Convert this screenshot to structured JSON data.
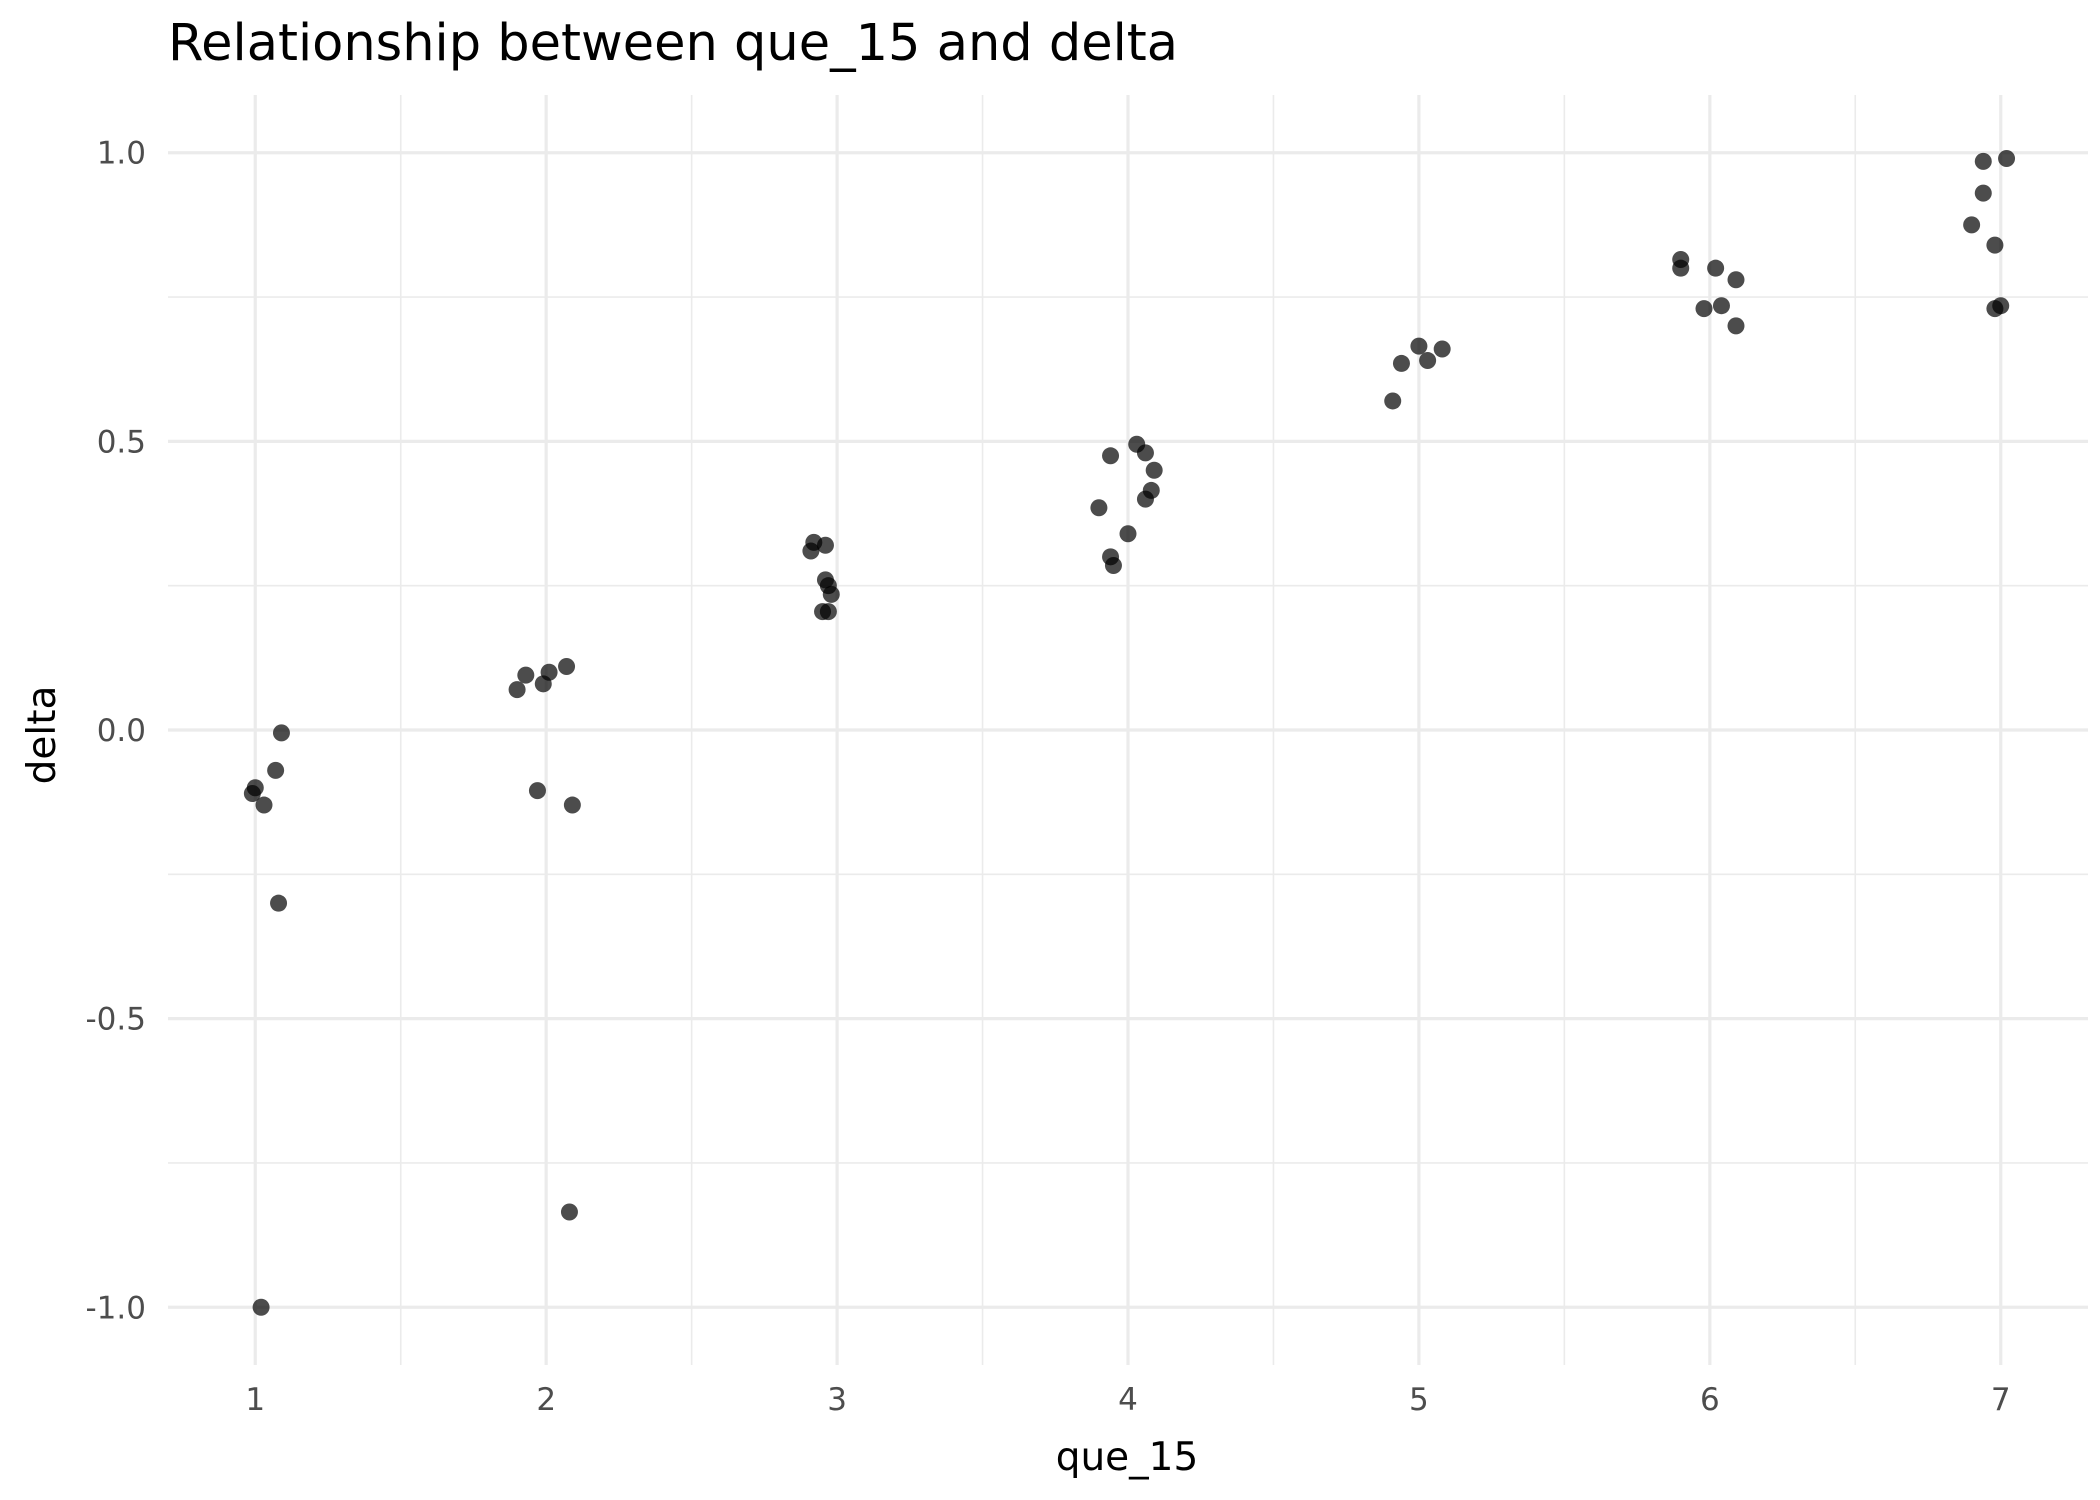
{
  "chart_data": {
    "type": "scatter",
    "title": "Relationship between que_15 and delta",
    "xlabel": "que_15",
    "ylabel": "delta",
    "xlim": [
      0.7,
      7.3
    ],
    "ylim": [
      -1.1,
      1.1
    ],
    "x_ticks": [
      1,
      2,
      3,
      4,
      5,
      6,
      7
    ],
    "x_tick_labels": [
      "1",
      "2",
      "3",
      "4",
      "5",
      "6",
      "7"
    ],
    "y_ticks": [
      -1.0,
      -0.5,
      0.0,
      0.5,
      1.0
    ],
    "y_tick_labels": [
      "-1.0",
      "-0.5",
      "0.0",
      "0.5",
      "1.0"
    ],
    "grid": true,
    "legend": "none",
    "point_color": "#000000",
    "point_opacity": 0.7,
    "points": [
      {
        "x": 1.0,
        "y": -0.1
      },
      {
        "x": 0.99,
        "y": -0.11
      },
      {
        "x": 1.03,
        "y": -0.13
      },
      {
        "x": 1.07,
        "y": -0.07
      },
      {
        "x": 1.09,
        "y": -0.005
      },
      {
        "x": 1.08,
        "y": -0.3
      },
      {
        "x": 1.02,
        "y": -1.0
      },
      {
        "x": 1.9,
        "y": 0.07
      },
      {
        "x": 1.93,
        "y": 0.095
      },
      {
        "x": 1.99,
        "y": 0.08
      },
      {
        "x": 2.01,
        "y": 0.1
      },
      {
        "x": 2.07,
        "y": 0.11
      },
      {
        "x": 1.97,
        "y": -0.105
      },
      {
        "x": 2.09,
        "y": -0.13
      },
      {
        "x": 2.08,
        "y": -0.835
      },
      {
        "x": 2.91,
        "y": 0.31
      },
      {
        "x": 2.92,
        "y": 0.325
      },
      {
        "x": 2.96,
        "y": 0.32
      },
      {
        "x": 2.96,
        "y": 0.26
      },
      {
        "x": 2.97,
        "y": 0.25
      },
      {
        "x": 2.98,
        "y": 0.235
      },
      {
        "x": 2.95,
        "y": 0.205
      },
      {
        "x": 2.97,
        "y": 0.205
      },
      {
        "x": 3.94,
        "y": 0.475
      },
      {
        "x": 4.03,
        "y": 0.495
      },
      {
        "x": 4.06,
        "y": 0.48
      },
      {
        "x": 4.09,
        "y": 0.45
      },
      {
        "x": 4.08,
        "y": 0.415
      },
      {
        "x": 4.06,
        "y": 0.4
      },
      {
        "x": 3.9,
        "y": 0.385
      },
      {
        "x": 4.0,
        "y": 0.34
      },
      {
        "x": 3.94,
        "y": 0.3
      },
      {
        "x": 3.95,
        "y": 0.285
      },
      {
        "x": 4.91,
        "y": 0.57
      },
      {
        "x": 4.94,
        "y": 0.635
      },
      {
        "x": 5.0,
        "y": 0.665
      },
      {
        "x": 5.03,
        "y": 0.64
      },
      {
        "x": 5.08,
        "y": 0.66
      },
      {
        "x": 5.9,
        "y": 0.8
      },
      {
        "x": 5.9,
        "y": 0.815
      },
      {
        "x": 6.02,
        "y": 0.8
      },
      {
        "x": 6.09,
        "y": 0.78
      },
      {
        "x": 5.98,
        "y": 0.73
      },
      {
        "x": 6.04,
        "y": 0.735
      },
      {
        "x": 6.09,
        "y": 0.7
      },
      {
        "x": 6.94,
        "y": 0.985
      },
      {
        "x": 7.02,
        "y": 0.99
      },
      {
        "x": 6.94,
        "y": 0.93
      },
      {
        "x": 6.9,
        "y": 0.875
      },
      {
        "x": 6.98,
        "y": 0.84
      },
      {
        "x": 6.98,
        "y": 0.73
      },
      {
        "x": 7.0,
        "y": 0.735
      }
    ]
  }
}
